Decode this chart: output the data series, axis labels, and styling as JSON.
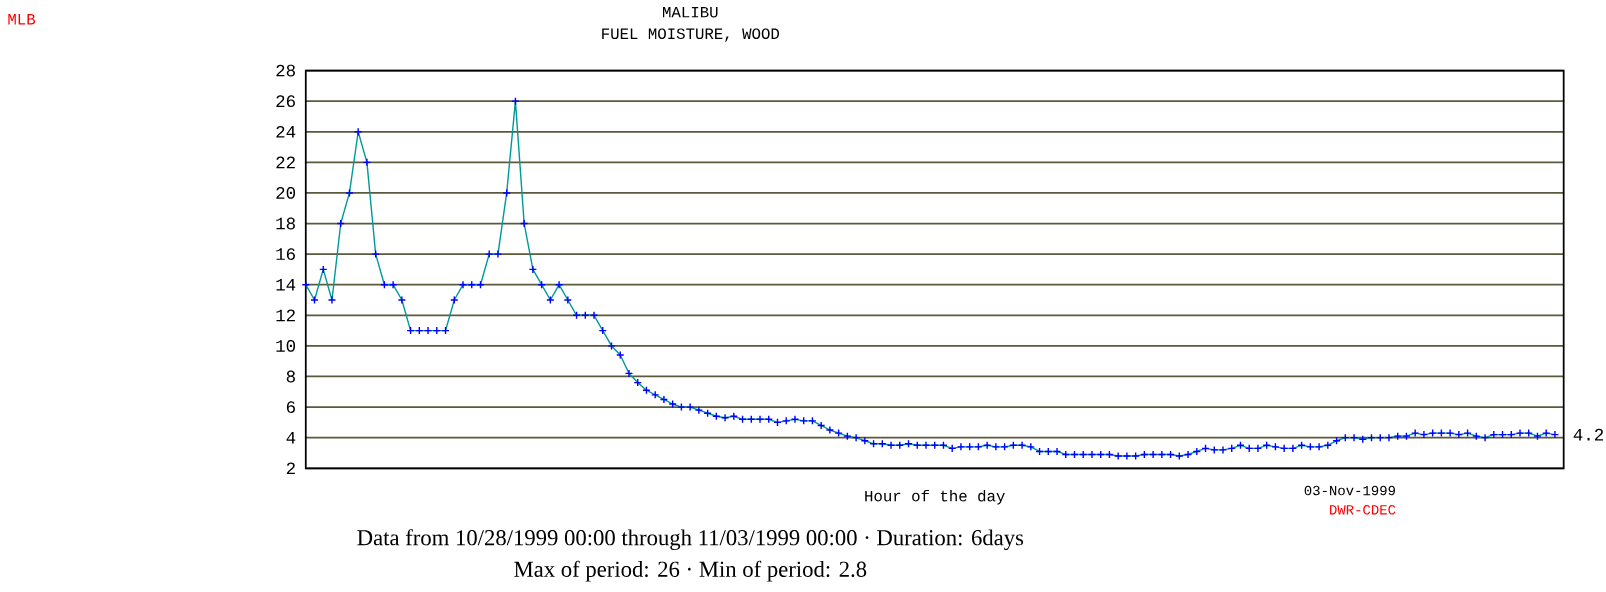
{
  "chart_data": {
    "type": "line",
    "title": "MALIBU",
    "subtitle": "FUEL MOISTURE, WOOD",
    "xlabel": "Hour of the day",
    "annotations": [
      "MLB",
      "03-Nov-1999",
      "DWR-CDEC",
      "Data from 10/28/1999 00:00 through 11/03/1999 00:00  ·  Duration: 6days",
      "Max of period: 26  ·  Min of period: 2.8"
    ],
    "categories": [
      null,
      null,
      null,
      null,
      null,
      null,
      null,
      null,
      null,
      null,
      null,
      null,
      null,
      null,
      null,
      null,
      null,
      null,
      null,
      null,
      null,
      null,
      null,
      null,
      null,
      null,
      null,
      null,
      null,
      null,
      null,
      null,
      null,
      null,
      null,
      null,
      null,
      null,
      null,
      null,
      null,
      null,
      null,
      null,
      null,
      null,
      null,
      null,
      null,
      null,
      null,
      null,
      null,
      null,
      null,
      null,
      null,
      null,
      null,
      null,
      null,
      null,
      null,
      null,
      null,
      null,
      null,
      null,
      null,
      null,
      null,
      null,
      null,
      null,
      null,
      null,
      null,
      null,
      null,
      null,
      null,
      null,
      null,
      null,
      null,
      null,
      null,
      null,
      null,
      null,
      null,
      null,
      null,
      null,
      null,
      null,
      null,
      null,
      null,
      null,
      null,
      null,
      null,
      null,
      null,
      null,
      null,
      null,
      null,
      null,
      null,
      null,
      null,
      null,
      null,
      null,
      null,
      null,
      null,
      null,
      null,
      null,
      null,
      null,
      null,
      null,
      null,
      null,
      null,
      null,
      null,
      null,
      null,
      null,
      null,
      null,
      null,
      null,
      null,
      null,
      null,
      null,
      null,
      null
    ],
    "values": [
      14,
      13,
      15,
      13,
      18,
      20,
      24,
      22,
      16,
      14,
      14,
      13,
      11,
      11,
      11,
      11,
      11,
      13,
      14,
      14,
      14,
      16,
      16,
      20,
      26,
      18,
      15,
      14,
      13,
      14,
      13,
      12,
      12,
      12,
      11,
      10,
      9.4,
      8.2,
      7.6,
      7.1,
      6.8,
      6.5,
      6.2,
      6.0,
      6.0,
      5.8,
      5.6,
      5.4,
      5.3,
      5.4,
      5.2,
      5.2,
      5.2,
      5.2,
      5.0,
      5.1,
      5.2,
      5.1,
      5.1,
      4.8,
      4.5,
      4.3,
      4.1,
      4.0,
      3.8,
      3.6,
      3.6,
      3.5,
      3.5,
      3.6,
      3.5,
      3.5,
      3.5,
      3.5,
      3.3,
      3.4,
      3.4,
      3.4,
      3.5,
      3.4,
      3.4,
      3.5,
      3.5,
      3.4,
      3.1,
      3.1,
      3.1,
      2.9,
      2.9,
      2.9,
      2.9,
      2.9,
      2.9,
      2.8,
      2.8,
      2.8,
      2.9,
      2.9,
      2.9,
      2.9,
      2.8,
      2.9,
      3.1,
      3.3,
      3.2,
      3.2,
      3.3,
      3.5,
      3.3,
      3.3,
      3.5,
      3.4,
      3.3,
      3.3,
      3.5,
      3.4,
      3.4,
      3.5,
      3.8,
      4.0,
      4.0,
      3.9,
      4.0,
      4.0,
      4.0,
      4.1,
      4.1,
      4.3,
      4.2,
      4.3,
      4.3,
      4.3,
      4.2,
      4.3,
      4.1,
      4.0,
      4.2,
      4.2,
      4.2,
      4.3,
      4.3,
      4.1,
      4.3,
      4.2
    ],
    "value_labels": [
      null,
      null,
      null,
      null,
      null,
      null,
      null,
      null,
      null,
      null,
      null,
      null,
      null,
      null,
      null,
      null,
      null,
      null,
      null,
      null,
      null,
      null,
      null,
      null,
      null,
      null,
      null,
      null,
      null,
      null,
      null,
      null,
      null,
      null,
      null,
      null,
      null,
      null,
      null,
      null,
      null,
      null,
      null,
      null,
      null,
      null,
      null,
      null,
      null,
      null,
      null,
      null,
      null,
      null,
      null,
      null,
      null,
      null,
      null,
      null,
      null,
      null,
      null,
      null,
      null,
      null,
      null,
      null,
      null,
      null,
      null,
      null,
      null,
      null,
      null,
      null,
      null,
      null,
      null,
      null,
      null,
      null,
      null,
      null,
      null,
      null,
      null,
      null,
      null,
      null,
      null,
      null,
      null,
      null,
      null,
      null,
      null,
      null,
      null,
      null,
      null,
      null,
      null,
      null,
      null,
      null,
      null,
      null,
      null,
      null,
      null,
      null,
      null,
      null,
      null,
      null,
      null,
      null,
      null,
      null,
      null,
      null,
      null,
      null,
      null,
      null,
      null,
      null,
      null,
      null,
      null,
      null,
      null,
      null,
      null,
      null,
      null,
      null,
      null,
      null,
      null,
      null,
      null,
      "4.2"
    ],
    "color": "#009999",
    "marker": "cross",
    "line_style": "solid",
    "grid": "y",
    "ylim": [
      2,
      28
    ],
    "yticks": [
      2,
      4,
      6,
      8,
      10,
      12,
      14,
      16,
      18,
      20,
      22,
      24,
      26,
      28
    ]
  }
}
